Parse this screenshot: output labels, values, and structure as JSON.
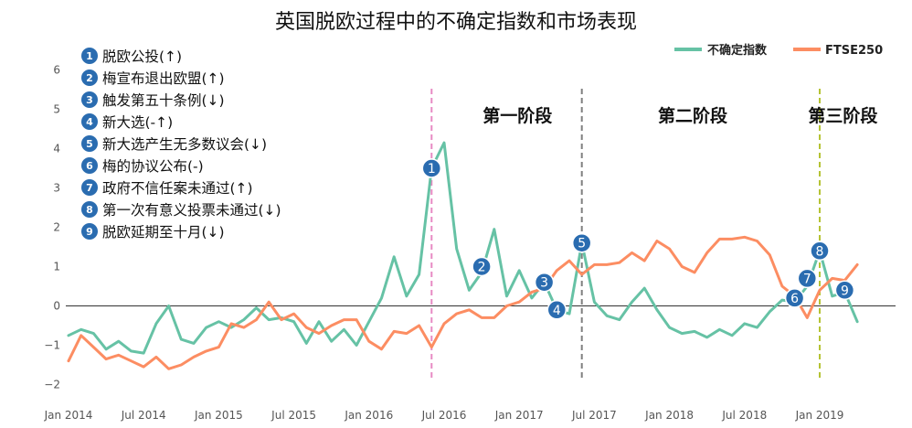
{
  "chart_data": {
    "type": "line",
    "title": "英国脱欧过程中的不确定指数和市场表现",
    "xlabel": "",
    "ylabel": "",
    "ylim": [
      -2.5,
      6.5
    ],
    "grid": false,
    "legend_position": "top-right",
    "x_ticks": [
      "Jan 2014",
      "Jul 2014",
      "Jan 2015",
      "Jul 2015",
      "Jan 2016",
      "Jul 2016",
      "Jan 2017",
      "Jul 2017",
      "Jan 2018",
      "Jul 2018",
      "Jan 2019"
    ],
    "y_ticks": [
      -2,
      -1,
      0,
      1,
      2,
      3,
      4,
      5,
      6
    ],
    "series": [
      {
        "name": "不确定指数",
        "color": "#66c2a5",
        "x": [
          "2014-01",
          "2014-02",
          "2014-03",
          "2014-04",
          "2014-05",
          "2014-06",
          "2014-07",
          "2014-08",
          "2014-09",
          "2014-10",
          "2014-11",
          "2014-12",
          "2015-01",
          "2015-02",
          "2015-03",
          "2015-04",
          "2015-05",
          "2015-06",
          "2015-07",
          "2015-08",
          "2015-09",
          "2015-10",
          "2015-11",
          "2015-12",
          "2016-01",
          "2016-02",
          "2016-03",
          "2016-04",
          "2016-05",
          "2016-06",
          "2016-07",
          "2016-08",
          "2016-09",
          "2016-10",
          "2016-11",
          "2016-12",
          "2017-01",
          "2017-02",
          "2017-03",
          "2017-04",
          "2017-05",
          "2017-06",
          "2017-07",
          "2017-08",
          "2017-09",
          "2017-10",
          "2017-11",
          "2017-12",
          "2018-01",
          "2018-02",
          "2018-03",
          "2018-04",
          "2018-05",
          "2018-06",
          "2018-07",
          "2018-08",
          "2018-09",
          "2018-10",
          "2018-11",
          "2018-12",
          "2019-01",
          "2019-02",
          "2019-03",
          "2019-04"
        ],
        "values": [
          -0.75,
          -0.6,
          -0.7,
          -1.1,
          -0.9,
          -1.15,
          -1.2,
          -0.45,
          0.0,
          -0.85,
          -0.95,
          -0.55,
          -0.4,
          -0.55,
          -0.35,
          -0.05,
          -0.35,
          -0.3,
          -0.4,
          -0.95,
          -0.4,
          -0.9,
          -0.6,
          -1.0,
          -0.4,
          0.2,
          1.25,
          0.25,
          0.8,
          3.5,
          4.15,
          1.45,
          0.4,
          0.85,
          1.95,
          0.25,
          0.9,
          0.2,
          0.6,
          -0.1,
          -0.2,
          1.6,
          0.1,
          -0.25,
          -0.35,
          0.1,
          0.45,
          -0.1,
          -0.55,
          -0.7,
          -0.65,
          -0.8,
          -0.6,
          -0.75,
          -0.45,
          -0.55,
          -0.15,
          0.15,
          0.1,
          0.5,
          1.4,
          0.25,
          0.35,
          -0.4
        ]
      },
      {
        "name": "FTSE250",
        "color": "#fc8d62",
        "x": [
          "2014-01",
          "2014-02",
          "2014-03",
          "2014-04",
          "2014-05",
          "2014-06",
          "2014-07",
          "2014-08",
          "2014-09",
          "2014-10",
          "2014-11",
          "2014-12",
          "2015-01",
          "2015-02",
          "2015-03",
          "2015-04",
          "2015-05",
          "2015-06",
          "2015-07",
          "2015-08",
          "2015-09",
          "2015-10",
          "2015-11",
          "2015-12",
          "2016-01",
          "2016-02",
          "2016-03",
          "2016-04",
          "2016-05",
          "2016-06",
          "2016-07",
          "2016-08",
          "2016-09",
          "2016-10",
          "2016-11",
          "2016-12",
          "2017-01",
          "2017-02",
          "2017-03",
          "2017-04",
          "2017-05",
          "2017-06",
          "2017-07",
          "2017-08",
          "2017-09",
          "2017-10",
          "2017-11",
          "2017-12",
          "2018-01",
          "2018-02",
          "2018-03",
          "2018-04",
          "2018-05",
          "2018-06",
          "2018-07",
          "2018-08",
          "2018-09",
          "2018-10",
          "2018-11",
          "2018-12",
          "2019-01",
          "2019-02",
          "2019-03",
          "2019-04"
        ],
        "values": [
          -1.4,
          -0.75,
          -1.05,
          -1.35,
          -1.25,
          -1.4,
          -1.55,
          -1.3,
          -1.6,
          -1.5,
          -1.3,
          -1.15,
          -1.05,
          -0.45,
          -0.55,
          -0.35,
          0.1,
          -0.35,
          -0.2,
          -0.55,
          -0.7,
          -0.5,
          -0.35,
          -0.35,
          -0.9,
          -1.1,
          -0.65,
          -0.7,
          -0.5,
          -1.05,
          -0.45,
          -0.2,
          -0.1,
          -0.3,
          -0.3,
          0.0,
          0.1,
          0.35,
          0.45,
          0.9,
          1.15,
          0.8,
          1.05,
          1.05,
          1.1,
          1.35,
          1.15,
          1.65,
          1.45,
          1.0,
          0.85,
          1.35,
          1.7,
          1.7,
          1.75,
          1.65,
          1.3,
          0.5,
          0.25,
          -0.3,
          0.4,
          0.7,
          0.65,
          1.05
        ]
      }
    ],
    "phase_lines": [
      {
        "x": "2016-06",
        "color": "#e78ac3"
      },
      {
        "x": "2017-06",
        "color": "#808080"
      },
      {
        "x": "2019-01",
        "color": "#b5c334"
      }
    ],
    "phase_labels": [
      {
        "text": "第一阶段",
        "x": "2017-01"
      },
      {
        "text": "第二阶段",
        "x": "2018-03"
      },
      {
        "text": "第三阶段",
        "x": "2019-03"
      }
    ],
    "event_markers": [
      {
        "num": "1",
        "x": "2016-06",
        "y": 3.5
      },
      {
        "num": "2",
        "x": "2016-10",
        "y": 1.0
      },
      {
        "num": "3",
        "x": "2017-03",
        "y": 0.6
      },
      {
        "num": "4",
        "x": "2017-04",
        "y": -0.1
      },
      {
        "num": "5",
        "x": "2017-06",
        "y": 1.6
      },
      {
        "num": "6",
        "x": "2018-11",
        "y": 0.2
      },
      {
        "num": "7",
        "x": "2018-12",
        "y": 0.7
      },
      {
        "num": "8",
        "x": "2019-01",
        "y": 1.4
      },
      {
        "num": "9",
        "x": "2019-03",
        "y": 0.4
      }
    ],
    "notes": [
      {
        "num": "1",
        "text": "脱欧公投(↑)"
      },
      {
        "num": "2",
        "text": "梅宣布退出欧盟(↑)"
      },
      {
        "num": "3",
        "text": "触发第五十条例(↓)"
      },
      {
        "num": "4",
        "text": "新大选(-↑)"
      },
      {
        "num": "5",
        "text": "新大选产生无多数议会(↓)"
      },
      {
        "num": "6",
        "text": "梅的协议公布(-)"
      },
      {
        "num": "7",
        "text": "政府不信任案未通过(↑)"
      },
      {
        "num": "8",
        "text": "第一次有意义投票未通过(↓)"
      },
      {
        "num": "9",
        "text": "脱欧延期至十月(↓)"
      }
    ],
    "marker_color": "#2a6cb0"
  }
}
